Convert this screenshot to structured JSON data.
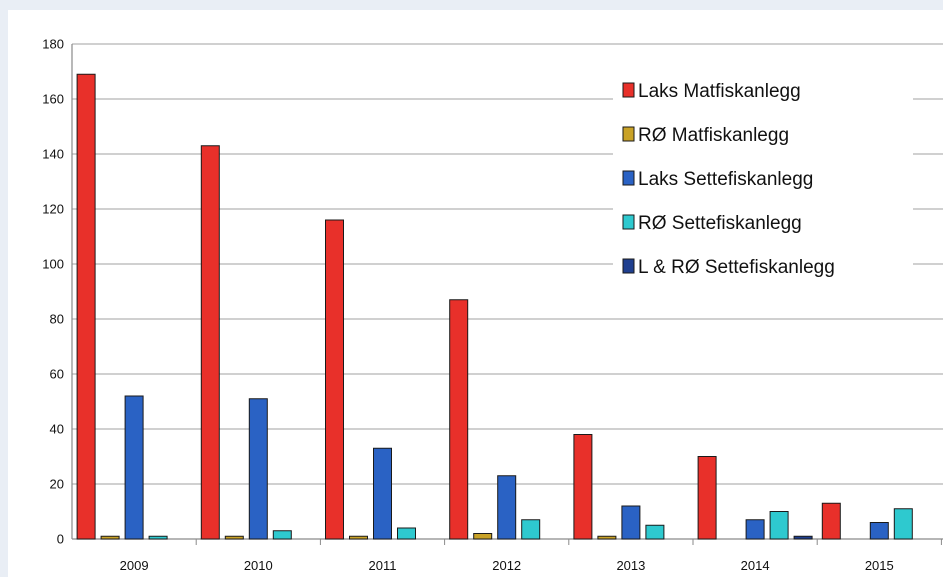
{
  "chart_data": {
    "type": "bar",
    "title": "",
    "xlabel": "",
    "ylabel": "",
    "categories": [
      "2009",
      "2010",
      "2011",
      "2012",
      "2013",
      "2014",
      "2015"
    ],
    "ylim": [
      0,
      180
    ],
    "yticks": [
      0,
      20,
      40,
      60,
      80,
      100,
      120,
      140,
      160,
      180
    ],
    "grid": true,
    "legend_position": "top-right",
    "series": [
      {
        "name": "Laks Matfiskanlegg",
        "color": "#e8302a",
        "values": [
          169,
          143,
          116,
          87,
          38,
          30,
          13
        ]
      },
      {
        "name": "RØ Matfiskanlegg",
        "color": "#c9a227",
        "values": [
          1,
          1,
          1,
          2,
          1,
          0,
          0
        ]
      },
      {
        "name": "Laks Settefiskanlegg",
        "color": "#2a62c4",
        "values": [
          52,
          51,
          33,
          23,
          12,
          7,
          6
        ]
      },
      {
        "name": "RØ Settefiskanlegg",
        "color": "#2ec9cf",
        "values": [
          1,
          3,
          4,
          7,
          5,
          10,
          11
        ]
      },
      {
        "name": "L & RØ Settefiskanlegg",
        "color": "#1f3f8f",
        "values": [
          0,
          0,
          0,
          0,
          0,
          1,
          0
        ]
      }
    ]
  }
}
